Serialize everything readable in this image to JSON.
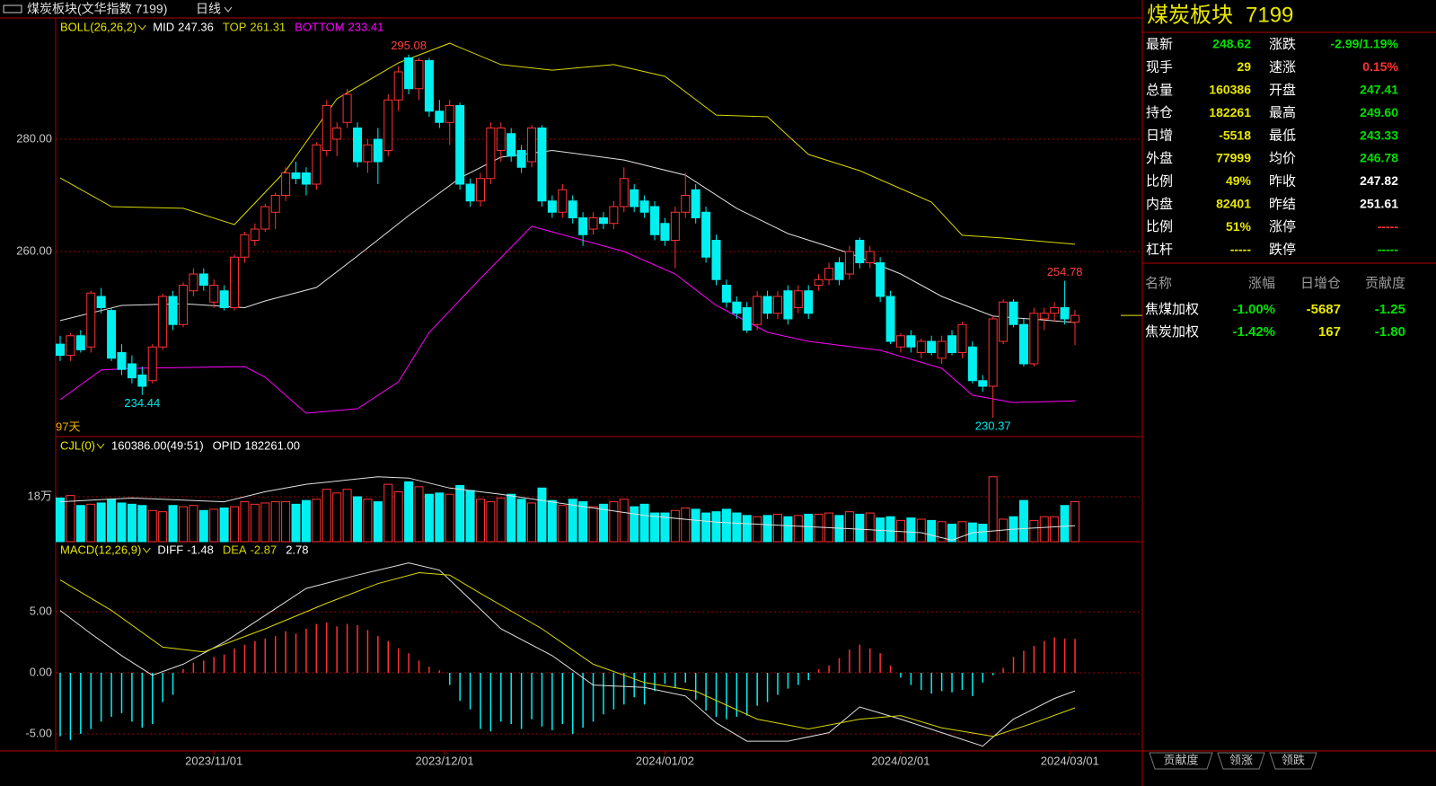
{
  "header": {
    "title": "煤炭板块(文华指数 7199)",
    "period": "日线"
  },
  "chart_data": {
    "type": "candlestick",
    "up_color": "#ff3232",
    "down_color": "#00f0f0",
    "candles": [
      [
        243.5,
        245,
        240.5,
        241.5
      ],
      [
        241.5,
        245.5,
        240.5,
        245
      ],
      [
        245,
        246,
        242,
        242.5
      ],
      [
        243,
        253,
        242,
        252.6
      ],
      [
        252,
        253.5,
        249,
        250
      ],
      [
        249.5,
        250,
        240.5,
        241
      ],
      [
        242,
        243.5,
        238,
        239
      ],
      [
        240,
        241.5,
        236.5,
        237.5
      ],
      [
        238,
        239.5,
        234.44,
        236
      ],
      [
        237,
        243.5,
        236.5,
        243
      ],
      [
        243,
        252.5,
        242.5,
        252
      ],
      [
        252,
        253,
        246,
        247
      ],
      [
        247,
        254.5,
        246.5,
        254
      ],
      [
        253,
        257,
        252,
        256
      ],
      [
        256,
        257,
        253,
        254
      ],
      [
        251,
        255,
        250,
        254
      ],
      [
        253,
        254,
        249.5,
        250
      ],
      [
        250,
        259.5,
        249.5,
        259
      ],
      [
        259,
        263.5,
        258,
        263
      ],
      [
        262,
        265,
        261,
        264
      ],
      [
        264,
        268.5,
        263.5,
        268
      ],
      [
        267,
        270.5,
        264,
        270
      ],
      [
        270,
        275,
        269,
        274
      ],
      [
        274,
        276,
        272,
        273
      ],
      [
        274,
        275,
        270,
        272
      ],
      [
        272,
        279.5,
        271,
        279
      ],
      [
        278,
        287,
        277,
        286
      ],
      [
        280,
        283,
        277,
        282
      ],
      [
        283,
        289,
        282,
        288
      ],
      [
        282,
        283,
        275,
        276
      ],
      [
        276,
        280,
        274,
        279
      ],
      [
        280,
        282,
        272,
        276
      ],
      [
        278,
        288,
        277,
        287
      ],
      [
        287,
        293,
        285,
        292
      ],
      [
        294.5,
        295.08,
        288,
        289
      ],
      [
        289,
        294.5,
        287,
        294
      ],
      [
        294,
        294.5,
        284,
        285
      ],
      [
        285,
        287,
        282,
        283
      ],
      [
        283,
        287,
        279,
        286
      ],
      [
        286,
        286.5,
        271,
        272
      ],
      [
        272,
        273,
        268,
        269
      ],
      [
        269,
        274,
        268,
        273
      ],
      [
        273,
        283,
        272,
        282
      ],
      [
        278,
        283,
        276,
        282
      ],
      [
        281,
        282,
        276,
        277
      ],
      [
        278,
        279,
        274,
        275
      ],
      [
        276,
        282.5,
        275,
        282
      ],
      [
        282,
        282.5,
        268,
        269
      ],
      [
        269,
        270,
        266,
        267
      ],
      [
        267,
        272,
        266,
        271
      ],
      [
        269,
        270,
        265,
        266
      ],
      [
        266,
        267,
        261,
        263
      ],
      [
        264,
        267,
        263,
        266
      ],
      [
        266,
        267,
        264,
        265
      ],
      [
        265,
        269,
        264,
        268
      ],
      [
        268,
        275,
        267,
        273
      ],
      [
        271,
        272,
        267,
        268
      ],
      [
        269,
        270,
        266,
        267
      ],
      [
        268,
        269,
        262,
        263
      ],
      [
        265,
        266,
        261,
        262
      ],
      [
        262,
        268,
        257,
        267
      ],
      [
        267,
        274,
        266,
        270
      ],
      [
        271,
        272,
        265,
        266
      ],
      [
        267,
        268,
        258,
        259
      ],
      [
        262,
        263,
        254,
        255
      ],
      [
        254,
        255,
        250,
        251
      ],
      [
        251,
        252,
        248,
        249
      ],
      [
        250,
        251,
        245.5,
        246
      ],
      [
        247,
        253,
        246,
        252
      ],
      [
        252,
        253,
        248,
        249
      ],
      [
        249,
        253,
        248,
        252
      ],
      [
        253,
        254,
        247,
        248
      ],
      [
        250,
        254,
        249,
        253
      ],
      [
        253,
        254,
        248,
        249
      ],
      [
        254,
        256,
        253,
        255
      ],
      [
        255,
        258,
        254,
        257
      ],
      [
        258,
        259,
        254,
        255
      ],
      [
        256,
        261,
        255,
        260
      ],
      [
        262,
        262.5,
        257,
        258
      ],
      [
        258,
        261,
        257,
        260
      ],
      [
        258,
        259,
        251,
        252
      ],
      [
        252,
        253,
        243.5,
        244
      ],
      [
        243,
        245.5,
        242,
        245
      ],
      [
        245,
        246,
        242,
        243
      ],
      [
        242,
        244.5,
        241,
        244
      ],
      [
        244,
        245,
        241.5,
        242
      ],
      [
        241,
        245,
        240,
        244
      ],
      [
        245,
        246,
        241.5,
        242
      ],
      [
        242,
        247.5,
        241,
        247
      ],
      [
        243,
        244,
        236.5,
        237
      ],
      [
        237,
        238,
        235,
        236
      ],
      [
        236,
        248.5,
        230.37,
        248
      ],
      [
        244,
        251.5,
        243.5,
        251
      ],
      [
        251,
        251.5,
        246.5,
        247
      ],
      [
        247,
        248,
        239.5,
        240
      ],
      [
        240,
        250,
        239.5,
        249
      ],
      [
        248,
        250,
        246,
        249
      ],
      [
        249,
        251,
        247.5,
        250
      ],
      [
        250,
        254.78,
        247,
        248
      ],
      [
        247.41,
        249.6,
        243.33,
        248.62
      ]
    ],
    "ylim": [
      227.04,
      301.28
    ],
    "yticks": [
      {
        "value": 260,
        "label": "260.00"
      },
      {
        "value": 280,
        "label": "280.00"
      }
    ],
    "grid": true,
    "xticks": [
      {
        "value": 15,
        "label": "2023/11/01"
      },
      {
        "value": 37.5,
        "label": "2023/12/01"
      },
      {
        "value": 59,
        "label": "2024/01/02"
      },
      {
        "value": 82,
        "label": "2024/02/01"
      },
      {
        "value": 98.5,
        "label": "2024/03/01"
      }
    ],
    "boll": {
      "name": "BOLL(26,26,2)",
      "color": "#e8e800",
      "lines": [
        {
          "name": "MID",
          "value": 247.36,
          "color": "#e0e0e0",
          "x": [
            0,
            6,
            12,
            18,
            20,
            25,
            29,
            34,
            39,
            43,
            48,
            55,
            61,
            66,
            71,
            77,
            82,
            86,
            91,
            99
          ],
          "values": [
            247.7,
            250.4,
            250.7,
            250,
            251.2,
            253.6,
            259.2,
            266.4,
            273.1,
            276.8,
            278,
            276.3,
            273.6,
            267.7,
            263.2,
            259.7,
            256,
            252,
            248.5,
            247.36
          ]
        },
        {
          "name": "TOP",
          "value": 261.31,
          "color": "#d8d800",
          "x": [
            0,
            5,
            12,
            17,
            22,
            27,
            33,
            38,
            43,
            48,
            54,
            59,
            64,
            69,
            73,
            78,
            85,
            88,
            92,
            99
          ],
          "values": [
            273.1,
            268,
            267.7,
            264.8,
            274.4,
            287.2,
            293.6,
            297.1,
            293.3,
            292.3,
            293.3,
            291.2,
            284.3,
            284,
            277.3,
            274.4,
            268.8,
            262.9,
            262.4,
            261.3
          ]
        },
        {
          "name": "BOTTOM",
          "value": 233.41,
          "color": "#ff00ff",
          "x": [
            0,
            4,
            7,
            18,
            20,
            24,
            29,
            33,
            36,
            41,
            46,
            48,
            55,
            60,
            64,
            69,
            73,
            80,
            86,
            89,
            93,
            99
          ],
          "values": [
            233.6,
            238.9,
            239.2,
            239.5,
            237.6,
            231.2,
            232,
            236.8,
            245.6,
            255.2,
            264.5,
            263.5,
            260,
            256,
            250.4,
            245.6,
            244,
            242.4,
            239.2,
            234.4,
            233.1,
            233.41
          ]
        }
      ]
    },
    "annotations": [
      {
        "value": 295.08,
        "x": 34,
        "color": "#ff4040"
      },
      {
        "value": 234.44,
        "x": 8,
        "color": "#00e8e8"
      },
      {
        "value": 254.78,
        "x": 98,
        "color": "#ff4040"
      },
      {
        "value": 230.37,
        "x": 91,
        "color": "#00e8e8"
      }
    ],
    "day_count": "97天",
    "volume": {
      "name": "CJL(0)",
      "info": "160386.00(49:51)",
      "opid_label": "OPID",
      "opid": "182261.00",
      "ylim": [
        0,
        41.76
      ],
      "yticks": [
        {
          "value": 18,
          "label": "18万"
        }
      ],
      "values": [
        17.5,
        18.5,
        14.5,
        15,
        15.5,
        17,
        15.5,
        15,
        14.5,
        12.5,
        12,
        14.5,
        14,
        14.5,
        12.5,
        13,
        13.5,
        14,
        16,
        15,
        15.5,
        16,
        16,
        15,
        16.5,
        17,
        21,
        19.5,
        21,
        18,
        17,
        16,
        23,
        20,
        24,
        22,
        19,
        19.5,
        19,
        22.5,
        20.5,
        17,
        16,
        17.5,
        19,
        17,
        15.5,
        21.5,
        16.5,
        14.5,
        17,
        16,
        14,
        15,
        16,
        17,
        14,
        15,
        11.5,
        11.5,
        12.5,
        13.5,
        13,
        11.5,
        12,
        13,
        11.5,
        10.5,
        10,
        10.5,
        11,
        10,
        10.5,
        11,
        11,
        11.5,
        10.5,
        12,
        11,
        11.5,
        9.5,
        10,
        8.5,
        9.5,
        9,
        8.5,
        8,
        7,
        8,
        7.5,
        7,
        26,
        9,
        10,
        16.5,
        8.5,
        10,
        10,
        14.5,
        16.0386
      ],
      "ma": {
        "color": "#e0e0e0",
        "x": [
          0,
          7,
          16,
          20,
          24,
          31,
          34,
          38,
          43,
          50,
          57,
          64,
          71,
          78,
          84,
          87,
          89,
          93,
          99
        ],
        "values": [
          16,
          17.5,
          16,
          20,
          23,
          26,
          25.5,
          21.5,
          19,
          14.7,
          10.5,
          7.8,
          6.4,
          5,
          3.6,
          0.6,
          3.6,
          5,
          6.4
        ]
      }
    },
    "macd": {
      "name": "MACD(12,26,9)",
      "value": 2.78,
      "ylim": [
        -6.4,
        10.66
      ],
      "yticks": [
        {
          "value": 5,
          "label": "5.00"
        },
        {
          "value": 0,
          "label": "0.00"
        },
        {
          "value": -5,
          "label": "-5.00"
        }
      ],
      "hist": [
        -5.2,
        -5.5,
        -5.0,
        -4.6,
        -4.0,
        -3.6,
        -3.3,
        -4.0,
        -4.5,
        -4.2,
        -2.4,
        -1.8,
        0.3,
        0.8,
        1.0,
        1.3,
        1.5,
        2.0,
        2.3,
        2.6,
        2.8,
        3.0,
        3.4,
        3.2,
        3.6,
        4.0,
        4.1,
        3.8,
        4.0,
        3.9,
        3.5,
        3.0,
        2.6,
        2.0,
        1.6,
        1.0,
        0.5,
        0.2,
        -1.0,
        -2.3,
        -3.0,
        -4.6,
        -4.8,
        -4.0,
        -4.2,
        -4.6,
        -3.8,
        -4.4,
        -4.7,
        -4.2,
        -5.0,
        -4.5,
        -4.0,
        -3.4,
        -3.0,
        -2.6,
        -2.0,
        -2.6,
        -1.5,
        -0.9,
        -1.2,
        -0.8,
        -2.2,
        -3.1,
        -3.6,
        -3.8,
        -3.6,
        -3.5,
        -2.7,
        -2.4,
        -1.8,
        -1.3,
        -1.0,
        -0.6,
        0.3,
        0.6,
        1.2,
        1.9,
        2.3,
        2.0,
        1.6,
        0.6,
        -0.4,
        -1.0,
        -1.4,
        -1.7,
        -1.5,
        -1.6,
        -1.4,
        -1.9,
        -0.8,
        -0.2,
        0.4,
        1.3,
        1.8,
        2.2,
        2.6,
        2.9,
        2.8,
        2.78
      ],
      "lines": [
        {
          "name": "DIFF",
          "value": -1.48,
          "color": "#e0e0e0",
          "x": [
            0,
            3,
            6,
            9,
            12,
            16,
            20,
            24,
            29,
            34,
            37,
            40,
            43,
            48,
            52,
            57,
            61,
            64,
            67,
            71,
            75,
            78,
            82,
            86,
            90,
            93,
            97,
            99
          ],
          "values": [
            5.1,
            3.2,
            1.4,
            -0.2,
            0.7,
            2.5,
            4.7,
            6.9,
            8.0,
            9.0,
            8.4,
            6.0,
            3.6,
            1.4,
            -1.0,
            -1.2,
            -1.9,
            -4.1,
            -5.6,
            -5.6,
            -4.9,
            -2.8,
            -3.8,
            -4.9,
            -6.0,
            -3.8,
            -2.1,
            -1.48
          ]
        },
        {
          "name": "DEA",
          "value": -2.87,
          "color": "#d8d800",
          "x": [
            0,
            5,
            10,
            14,
            20,
            26,
            31,
            35,
            38,
            41,
            47,
            52,
            57,
            62,
            68,
            73,
            78,
            82,
            86,
            91,
            95,
            99
          ],
          "values": [
            7.6,
            5.1,
            2.1,
            1.7,
            3.6,
            5.7,
            7.3,
            8.2,
            8.0,
            6.5,
            3.6,
            0.7,
            -0.8,
            -1.5,
            -3.8,
            -4.6,
            -3.8,
            -3.5,
            -4.5,
            -5.2,
            -4.1,
            -2.87
          ]
        }
      ]
    }
  },
  "quote": {
    "name": "煤炭板块",
    "code": "7199",
    "rows": [
      [
        {
          "label": "最新",
          "value": "248.62",
          "color": "#00e000"
        },
        {
          "label": "涨跌",
          "value": "-2.99/1.19%",
          "color": "#00e000"
        }
      ],
      [
        {
          "label": "现手",
          "value": "29",
          "color": "#e8e800"
        },
        {
          "label": "速涨",
          "value": "0.15%",
          "color": "#ff3232"
        }
      ],
      [
        {
          "label": "总量",
          "value": "160386",
          "color": "#e8e800"
        },
        {
          "label": "开盘",
          "value": "247.41",
          "color": "#00e000"
        }
      ],
      [
        {
          "label": "持仓",
          "value": "182261",
          "color": "#e8e800"
        },
        {
          "label": "最高",
          "value": "249.60",
          "color": "#00e000"
        }
      ],
      [
        {
          "label": "日增",
          "value": "-5518",
          "color": "#e8e800"
        },
        {
          "label": "最低",
          "value": "243.33",
          "color": "#00e000"
        }
      ],
      [
        {
          "label": "外盘",
          "value": "77999",
          "color": "#e8e800"
        },
        {
          "label": "均价",
          "value": "246.78",
          "color": "#00e000"
        }
      ],
      [
        {
          "label": "比例",
          "value": "49%",
          "color": "#e8e800"
        },
        {
          "label": "昨收",
          "value": "247.82",
          "color": "#ffffff"
        }
      ],
      [
        {
          "label": "内盘",
          "value": "82401",
          "color": "#e8e800"
        },
        {
          "label": "昨结",
          "value": "251.61",
          "color": "#ffffff"
        }
      ],
      [
        {
          "label": "比例",
          "value": "51%",
          "color": "#e8e800"
        },
        {
          "label": "涨停",
          "value": "-----",
          "color": "#ff3232"
        }
      ],
      [
        {
          "label": "杠杆",
          "value": "-----",
          "color": "#e8e800"
        },
        {
          "label": "跌停",
          "value": "-----",
          "color": "#00e000"
        }
      ]
    ]
  },
  "components": {
    "headers": [
      "名称",
      "涨幅",
      "日增仓",
      "贡献度"
    ],
    "colors": [
      "#ffffff",
      "#00e000",
      "#e8e800",
      "#00e000"
    ],
    "rows": [
      [
        "焦煤加权",
        "-1.00%",
        "-5687",
        "-1.25"
      ],
      [
        "焦炭加权",
        "-1.42%",
        "167",
        "-1.80"
      ]
    ]
  },
  "tabs": [
    "贡献度",
    "领涨",
    "领跌"
  ]
}
